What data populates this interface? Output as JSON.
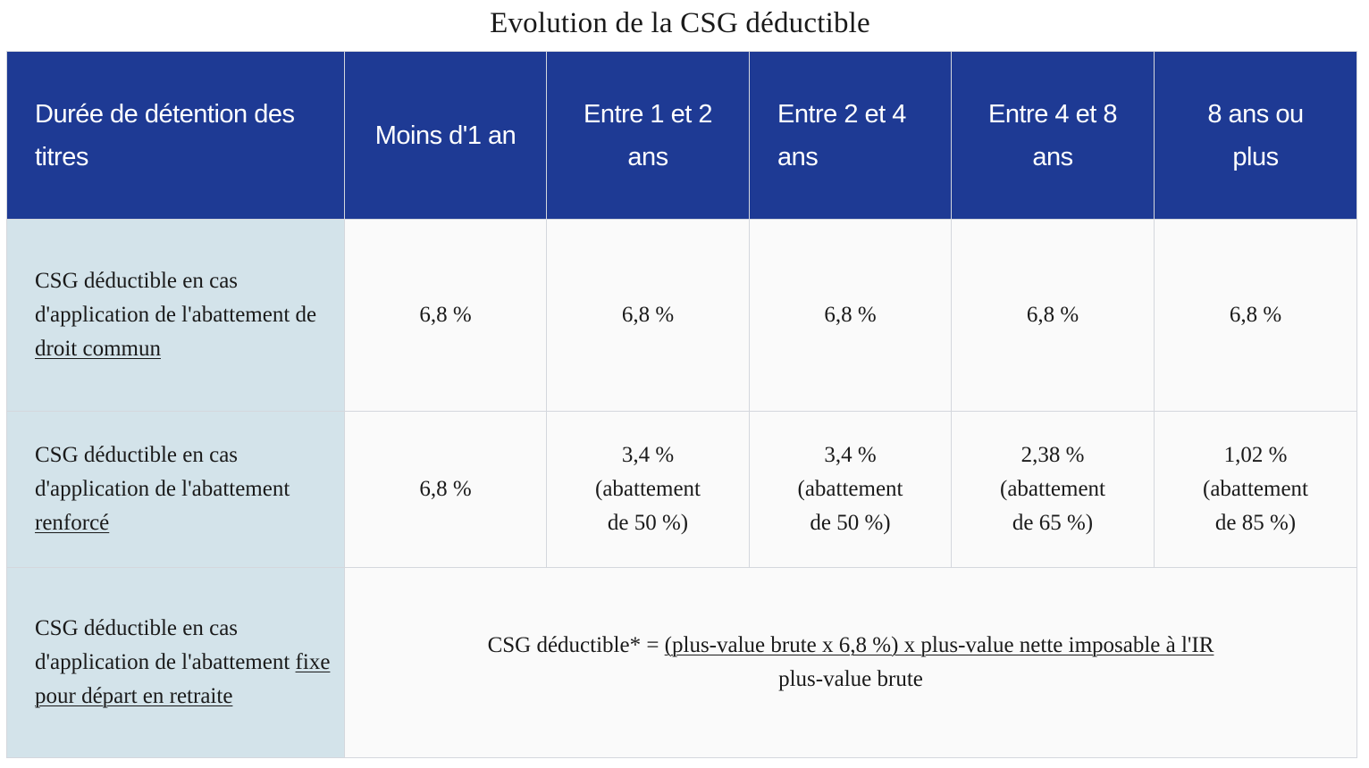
{
  "title": "Evolution de la CSG déductible",
  "header": {
    "col0": "Durée de détention des titres",
    "col1": "Moins d'1 an",
    "col2_line1": "Entre 1 et  2",
    "col2_line2": "ans",
    "col3_line1": "Entre 2 et 4",
    "col3_line2": "ans",
    "col4_line1": "Entre 4 et 8",
    "col4_line2": "ans",
    "col5_line1": "8 ans ou",
    "col5_line2": "plus"
  },
  "rows": [
    {
      "label_prefix": "CSG déductible en cas d'application de l'abattement de ",
      "label_link": "droit commun",
      "cells": [
        {
          "value": "6,8 %"
        },
        {
          "value": "6,8 %"
        },
        {
          "value": "6,8 %"
        },
        {
          "value": "6,8 %"
        },
        {
          "value": "6,8 %"
        }
      ]
    },
    {
      "label_prefix": "CSG déductible en cas d'application de l'abattement ",
      "label_link": "renforcé",
      "cells": [
        {
          "value": "6,8 %"
        },
        {
          "value": "3,4 %",
          "note1": "(abattement",
          "note2": "de 50 %)"
        },
        {
          "value": "3,4 %",
          "note1": "(abattement",
          "note2": "de 50 %)"
        },
        {
          "value": "2,38 %",
          "note1": "(abattement",
          "note2": "de 65 %)"
        },
        {
          "value": "1,02 %",
          "note1": "(abattement",
          "note2": "de 85 %)"
        }
      ]
    },
    {
      "label_prefix": "CSG déductible en cas d'application de l'abattement ",
      "label_link": "fixe pour départ en retraite",
      "formula_prefix": "CSG déductible* = ",
      "formula_numerator": "(plus-value brute x 6,8 %) x plus-value nette imposable à l'IR",
      "formula_denominator": "plus-value brute"
    }
  ],
  "colors": {
    "header_bg": "#1e3a94",
    "rowhead_bg": "#d3e3ea",
    "cell_bg": "#fafafa"
  }
}
